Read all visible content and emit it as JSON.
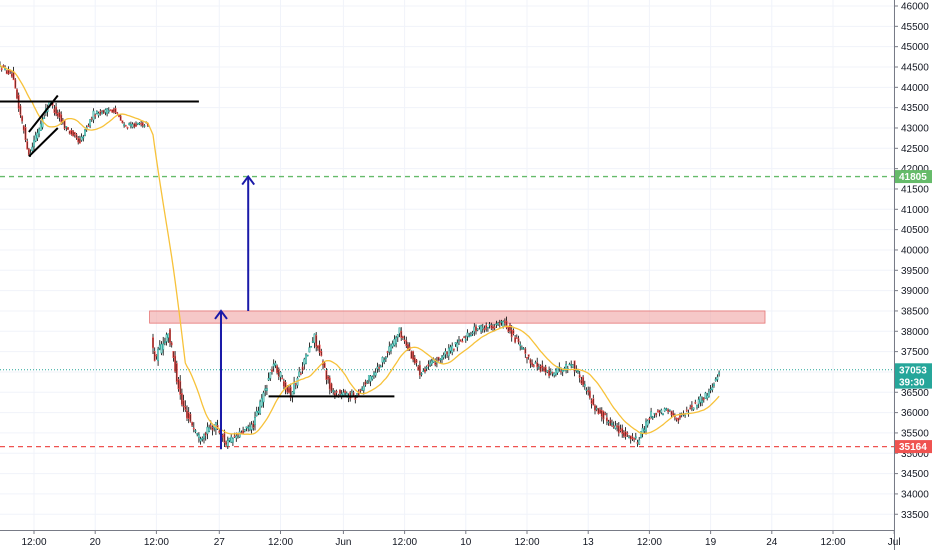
{
  "chart_data": {
    "type": "candlestick",
    "title": "",
    "xlabel": "",
    "ylabel": "",
    "ylim": [
      33000,
      46250
    ],
    "grid": true,
    "y_ticks": [
      33500,
      34000,
      34500,
      35000,
      35500,
      36000,
      36500,
      37000,
      37500,
      38000,
      38500,
      39000,
      39500,
      40000,
      40500,
      41000,
      41500,
      42000,
      42500,
      43000,
      43500,
      44000,
      44500,
      45000,
      45500,
      46000
    ],
    "x_ticks": [
      {
        "label": "12:00",
        "index": 20
      },
      {
        "label": "20",
        "index": 56
      },
      {
        "label": "12:00",
        "index": 92
      },
      {
        "label": "27",
        "index": 129
      },
      {
        "label": "12:00",
        "index": 165
      },
      {
        "label": "Jun",
        "index": 202
      },
      {
        "label": "12:00",
        "index": 238
      },
      {
        "label": "10",
        "index": 274
      },
      {
        "label": "12:00",
        "index": 310
      },
      {
        "label": "13",
        "index": 346
      },
      {
        "label": "12:00",
        "index": 382
      },
      {
        "label": "19",
        "index": 418
      },
      {
        "label": "24",
        "index": 454
      },
      {
        "label": "12:00",
        "index": 490
      },
      {
        "label": "Jul",
        "index": 526
      }
    ],
    "gap": {
      "after_index": 87,
      "missing_bars": 2
    },
    "segments": [
      {
        "from": 0,
        "to": 8,
        "start": 44550,
        "end": 44300,
        "wiggle": 120
      },
      {
        "from": 8,
        "to": 18,
        "start": 44300,
        "end": 42350,
        "wiggle": 180
      },
      {
        "from": 18,
        "to": 30,
        "start": 42350,
        "end": 43650,
        "wiggle": 180
      },
      {
        "from": 30,
        "to": 40,
        "start": 43650,
        "end": 43000,
        "wiggle": 160
      },
      {
        "from": 40,
        "to": 48,
        "start": 43000,
        "end": 42650,
        "wiggle": 140
      },
      {
        "from": 48,
        "to": 56,
        "start": 42650,
        "end": 43350,
        "wiggle": 140
      },
      {
        "from": 56,
        "to": 68,
        "start": 43350,
        "end": 43450,
        "wiggle": 120
      },
      {
        "from": 68,
        "to": 74,
        "start": 43450,
        "end": 43050,
        "wiggle": 120
      },
      {
        "from": 74,
        "to": 88,
        "start": 43050,
        "end": 43100,
        "wiggle": 100
      },
      {
        "from": 88,
        "to": 92,
        "start": 38300,
        "end": 37300,
        "wiggle": 350
      },
      {
        "from": 92,
        "to": 100,
        "start": 37300,
        "end": 38000,
        "wiggle": 250
      },
      {
        "from": 100,
        "to": 108,
        "start": 38000,
        "end": 36200,
        "wiggle": 250
      },
      {
        "from": 108,
        "to": 118,
        "start": 36200,
        "end": 35400,
        "wiggle": 220
      },
      {
        "from": 118,
        "to": 128,
        "start": 35400,
        "end": 35700,
        "wiggle": 200
      },
      {
        "from": 128,
        "to": 134,
        "start": 35700,
        "end": 35250,
        "wiggle": 200
      },
      {
        "from": 134,
        "to": 150,
        "start": 35250,
        "end": 35700,
        "wiggle": 150
      },
      {
        "from": 150,
        "to": 162,
        "start": 35700,
        "end": 37200,
        "wiggle": 220
      },
      {
        "from": 162,
        "to": 172,
        "start": 37200,
        "end": 36450,
        "wiggle": 220
      },
      {
        "from": 172,
        "to": 186,
        "start": 36450,
        "end": 37850,
        "wiggle": 220
      },
      {
        "from": 186,
        "to": 196,
        "start": 37850,
        "end": 36500,
        "wiggle": 200
      },
      {
        "from": 196,
        "to": 210,
        "start": 36500,
        "end": 36400,
        "wiggle": 180
      },
      {
        "from": 210,
        "to": 224,
        "start": 36400,
        "end": 37150,
        "wiggle": 180
      },
      {
        "from": 224,
        "to": 236,
        "start": 37150,
        "end": 38000,
        "wiggle": 180
      },
      {
        "from": 236,
        "to": 248,
        "start": 38000,
        "end": 37000,
        "wiggle": 180
      },
      {
        "from": 248,
        "to": 262,
        "start": 37000,
        "end": 37400,
        "wiggle": 160
      },
      {
        "from": 262,
        "to": 280,
        "start": 37400,
        "end": 38050,
        "wiggle": 160
      },
      {
        "from": 280,
        "to": 298,
        "start": 38050,
        "end": 38200,
        "wiggle": 150
      },
      {
        "from": 298,
        "to": 312,
        "start": 38200,
        "end": 37300,
        "wiggle": 180
      },
      {
        "from": 312,
        "to": 324,
        "start": 37300,
        "end": 36950,
        "wiggle": 180
      },
      {
        "from": 324,
        "to": 338,
        "start": 36950,
        "end": 37200,
        "wiggle": 160
      },
      {
        "from": 338,
        "to": 352,
        "start": 37200,
        "end": 36050,
        "wiggle": 200
      },
      {
        "from": 352,
        "to": 366,
        "start": 36050,
        "end": 35550,
        "wiggle": 180
      },
      {
        "from": 366,
        "to": 376,
        "start": 35550,
        "end": 35300,
        "wiggle": 160
      },
      {
        "from": 376,
        "to": 384,
        "start": 35300,
        "end": 35950,
        "wiggle": 160
      },
      {
        "from": 384,
        "to": 394,
        "start": 35950,
        "end": 36050,
        "wiggle": 140
      },
      {
        "from": 394,
        "to": 400,
        "start": 36050,
        "end": 35850,
        "wiggle": 140
      },
      {
        "from": 400,
        "to": 418,
        "start": 35850,
        "end": 36500,
        "wiggle": 160
      },
      {
        "from": 418,
        "to": 424,
        "start": 36500,
        "end": 37000,
        "wiggle": 160
      }
    ],
    "ma_period": 20,
    "series": [
      {
        "kind": "moving-average",
        "color": "#f7c23a"
      }
    ],
    "colors": {
      "up": "#26a69a",
      "down": "#ef5350",
      "wick": "#000000",
      "fill_up": "#ffffff",
      "fill_down": "#000000"
    },
    "annotations": [
      {
        "kind": "hline",
        "price": 41805,
        "color": "#66bb6a",
        "dashed": true
      },
      {
        "kind": "hline",
        "price": 35164,
        "color": "#ef5350",
        "dashed": true
      },
      {
        "kind": "hline",
        "price": 37053,
        "color": "#26a69a",
        "dotted": true
      },
      {
        "kind": "zone",
        "price_low": 38200,
        "price_high": 38500,
        "from_index": 88,
        "to_index": 450,
        "color": "#ef9a9a"
      },
      {
        "kind": "trendline",
        "from": {
          "index": 0,
          "price": 43650
        },
        "to": {
          "index": 117,
          "price": 43650
        },
        "color": "#000000"
      },
      {
        "kind": "trendline",
        "from": {
          "index": 158,
          "price": 36400
        },
        "to": {
          "index": 232,
          "price": 36400
        },
        "color": "#000000"
      },
      {
        "kind": "trendline",
        "from": {
          "index": 17,
          "price": 42300
        },
        "to": {
          "index": 34,
          "price": 43000
        },
        "color": "#000000"
      },
      {
        "kind": "trendline",
        "from": {
          "index": 17,
          "price": 42900
        },
        "to": {
          "index": 34,
          "price": 43800
        },
        "color": "#000000"
      },
      {
        "kind": "arrow",
        "index": 130,
        "from_price": 35100,
        "to_price": 38500,
        "color": "#1a1aa8"
      },
      {
        "kind": "arrow",
        "index": 146,
        "from_price": 38500,
        "to_price": 41805,
        "color": "#1a1aa8"
      }
    ],
    "price_tags": [
      {
        "value": "41805",
        "price": 41805,
        "color": "#66bb6a"
      },
      {
        "value": "37053",
        "price": 37053,
        "color": "#26a69a"
      },
      {
        "value": "39:30",
        "price": 36750,
        "color": "#26a69a"
      },
      {
        "value": "35164",
        "price": 35164,
        "color": "#ef5350"
      }
    ]
  }
}
